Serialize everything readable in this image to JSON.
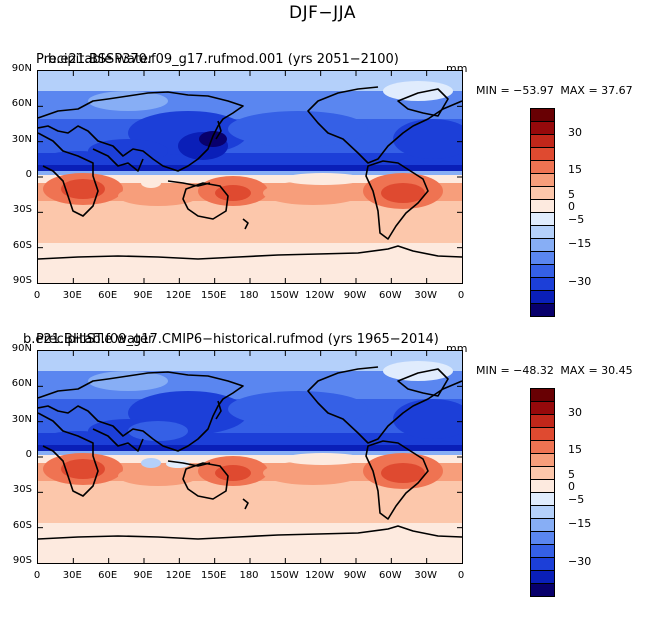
{
  "title": "DJF−JJA",
  "colorbar": {
    "colors": [
      "#08006c",
      "#0a1fb8",
      "#1c3fd8",
      "#3560e6",
      "#5a86f0",
      "#87aef5",
      "#b4d0fa",
      "#e0ecfd",
      "#fdeadf",
      "#fcc7ab",
      "#f79e7b",
      "#ef7352",
      "#df4a30",
      "#c1271a",
      "#96090b",
      "#680003"
    ],
    "labels": [
      "30",
      "15",
      "5",
      "0",
      "−5",
      "−15",
      "−30"
    ]
  },
  "axes": {
    "lat_labels": [
      "90N",
      "60N",
      "30N",
      "0",
      "30S",
      "60S",
      "90S"
    ],
    "lon_labels": [
      "0",
      "30E",
      "60E",
      "90E",
      "120E",
      "150E",
      "180",
      "150W",
      "120W",
      "90W",
      "60W",
      "30W",
      "0"
    ]
  },
  "panels": [
    {
      "title_a": "Precipitable water",
      "title_b": "b.e21.BSSP370.f09_g17.rufmod.001 (yrs 2051−2100)",
      "units": "mm",
      "min_label": "MIN = −53.97",
      "max_label": "MAX =  37.67"
    },
    {
      "title_a": "Precipitable water",
      "title_b": "b.e21.BHIST.f09_g17.CMIP6−historical.rufmod (yrs 1965−2014)",
      "units": "mm",
      "min_label": "MIN = −48.32",
      "max_label": "MAX =  30.45"
    }
  ]
}
